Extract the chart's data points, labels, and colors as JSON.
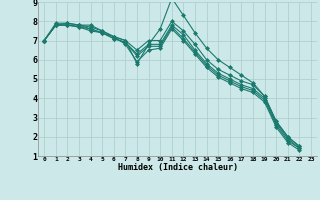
{
  "xlabel": "Humidex (Indice chaleur)",
  "background_color": "#cce8e8",
  "grid_color": "#b0d0d0",
  "line_color": "#1a7a6e",
  "xlim": [
    -0.5,
    23.5
  ],
  "ylim": [
    1,
    9
  ],
  "yticks": [
    1,
    2,
    3,
    4,
    5,
    6,
    7,
    8,
    9
  ],
  "xtick_labels": [
    "0",
    "1",
    "2",
    "3",
    "4",
    "5",
    "6",
    "7",
    "8",
    "9",
    "10",
    "11",
    "12",
    "13",
    "14",
    "15",
    "16",
    "17",
    "18",
    "19",
    "20",
    "21",
    "22",
    "23"
  ],
  "series": [
    [
      7.0,
      7.9,
      7.9,
      7.8,
      7.8,
      7.5,
      7.2,
      7.0,
      5.8,
      6.8,
      7.6,
      9.2,
      8.3,
      7.4,
      6.6,
      6.0,
      5.6,
      5.2,
      4.8,
      4.1,
      2.8,
      2.0,
      1.5
    ],
    [
      7.0,
      7.8,
      7.8,
      7.8,
      7.7,
      7.5,
      7.2,
      7.0,
      6.5,
      7.0,
      7.0,
      8.0,
      7.5,
      6.8,
      6.0,
      5.5,
      5.2,
      4.9,
      4.7,
      4.1,
      2.8,
      2.0,
      1.5
    ],
    [
      7.0,
      7.8,
      7.8,
      7.7,
      7.5,
      7.4,
      7.1,
      6.9,
      6.3,
      6.8,
      6.8,
      7.8,
      7.3,
      6.5,
      5.8,
      5.3,
      5.0,
      4.7,
      4.5,
      4.0,
      2.7,
      1.9,
      1.4
    ],
    [
      7.0,
      7.8,
      7.8,
      7.7,
      7.6,
      7.4,
      7.1,
      6.9,
      6.2,
      6.7,
      6.7,
      7.7,
      7.1,
      6.4,
      5.7,
      5.2,
      4.9,
      4.6,
      4.4,
      3.9,
      2.6,
      1.8,
      1.4
    ],
    [
      7.0,
      7.8,
      7.9,
      7.8,
      7.6,
      7.4,
      7.2,
      6.8,
      5.9,
      6.5,
      6.6,
      7.6,
      7.0,
      6.3,
      5.6,
      5.1,
      4.8,
      4.5,
      4.3,
      3.8,
      2.5,
      1.7,
      1.3
    ]
  ]
}
